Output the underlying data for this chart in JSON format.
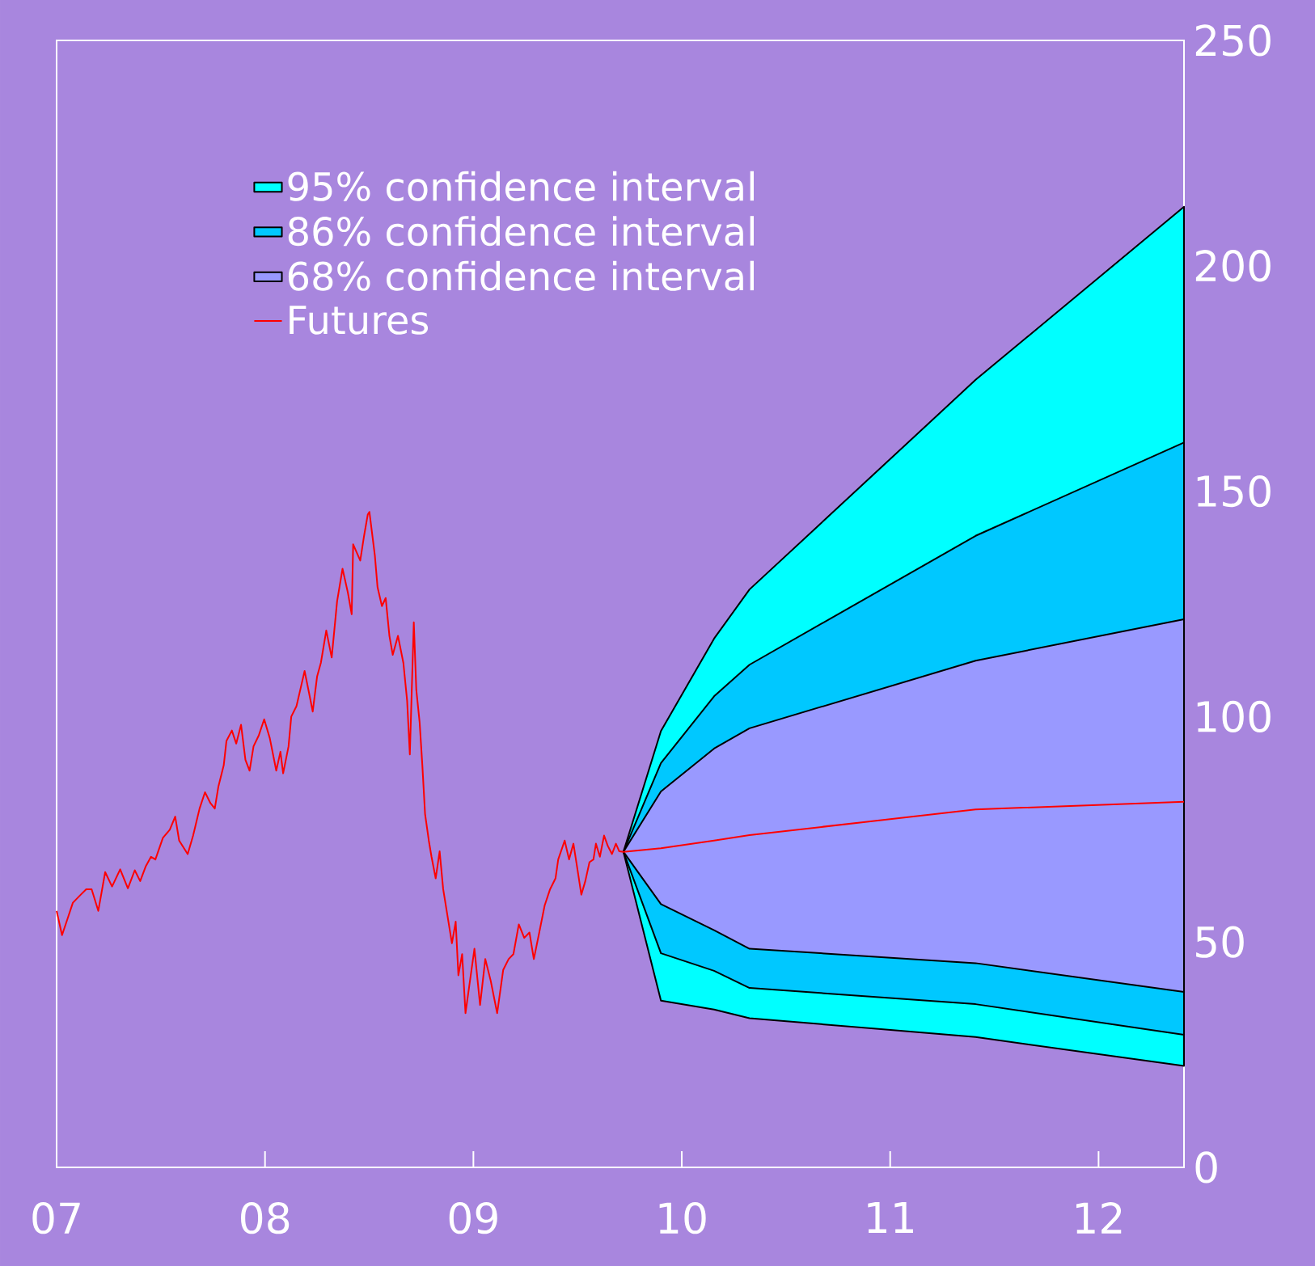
{
  "chart_data": {
    "type": "line",
    "xlim": [
      7,
      12.41
    ],
    "ylim": [
      0,
      250
    ],
    "xticks": [
      {
        "value": 7,
        "label": "07"
      },
      {
        "value": 8,
        "label": "08"
      },
      {
        "value": 9,
        "label": "09"
      },
      {
        "value": 10,
        "label": "10"
      },
      {
        "value": 11,
        "label": "11"
      },
      {
        "value": 12,
        "label": "12"
      }
    ],
    "yticks": [
      0,
      50,
      100,
      150,
      200,
      250
    ],
    "legend": "top left",
    "series": [
      {
        "name": "95% confidence interval",
        "color": "#00ffff",
        "x": [
          9.72,
          9.9,
          10.155,
          10.325,
          11.41,
          12.41
        ],
        "values": [
          null,
          null,
          null,
          null,
          null,
          null
        ],
        "upper": [
          70,
          96.8,
          117.3,
          128.2,
          174.7,
          213.1
        ],
        "lower": [
          70,
          37.0,
          35.0,
          33.1,
          28.9,
          22.5
        ]
      },
      {
        "name": "86% confidence interval",
        "color": "#00c8ff",
        "x": [
          9.72,
          9.9,
          10.155,
          10.325,
          11.41,
          12.41
        ],
        "values": [
          null,
          null,
          null,
          null,
          null,
          null
        ],
        "upper": [
          70,
          89.7,
          104.5,
          111.5,
          140.1,
          160.8
        ],
        "lower": [
          70,
          47.5,
          43.6,
          39.8,
          36.2,
          29.4
        ]
      },
      {
        "name": "68% confidence interval",
        "color": "#9999ff",
        "x": [
          9.72,
          9.9,
          10.155,
          10.325,
          11.41,
          12.41
        ],
        "values": [
          null,
          null,
          null,
          null,
          null,
          null
        ],
        "upper": [
          70,
          83.4,
          92.9,
          97.4,
          112.4,
          121.6
        ],
        "lower": [
          70,
          58.4,
          52.6,
          48.5,
          45.3,
          38.9
        ]
      },
      {
        "name": "Futures",
        "color": "#ff0000",
        "x": [
          7.0,
          7.026,
          7.052,
          7.078,
          7.116,
          7.142,
          7.168,
          7.2,
          7.233,
          7.266,
          7.305,
          7.342,
          7.375,
          7.401,
          7.427,
          7.453,
          7.474,
          7.51,
          7.543,
          7.569,
          7.588,
          7.629,
          7.655,
          7.686,
          7.712,
          7.738,
          7.759,
          7.776,
          7.802,
          7.815,
          7.841,
          7.862,
          7.885,
          7.906,
          7.926,
          7.945,
          7.97,
          7.996,
          8.023,
          8.054,
          8.074,
          8.087,
          8.113,
          8.126,
          8.151,
          8.172,
          8.19,
          8.211,
          8.229,
          8.25,
          8.268,
          8.294,
          8.32,
          8.346,
          8.372,
          8.398,
          8.416,
          8.423,
          8.457,
          8.475,
          8.493,
          8.501,
          8.527,
          8.54,
          8.561,
          8.579,
          8.597,
          8.613,
          8.638,
          8.664,
          8.682,
          8.695,
          8.714,
          8.726,
          8.742,
          8.755,
          8.768,
          8.786,
          8.799,
          8.819,
          8.838,
          8.855,
          8.876,
          8.897,
          8.915,
          8.928,
          8.946,
          8.962,
          8.98,
          9.005,
          9.032,
          9.057,
          9.083,
          9.114,
          9.143,
          9.169,
          9.192,
          9.218,
          9.244,
          9.269,
          9.29,
          9.316,
          9.342,
          9.368,
          9.394,
          9.407,
          9.438,
          9.459,
          9.48,
          9.498,
          9.518,
          9.537,
          9.557,
          9.576,
          9.588,
          9.607,
          9.627,
          9.645,
          9.665,
          9.684,
          9.7,
          9.72,
          9.9,
          10.155,
          10.325,
          11.41,
          12.41
        ],
        "values": [
          56.9,
          51.5,
          55.1,
          58.7,
          60.5,
          61.7,
          61.7,
          56.9,
          65.5,
          62.3,
          66.1,
          61.9,
          65.9,
          63.5,
          66.7,
          68.9,
          68.3,
          73.1,
          74.9,
          77.8,
          72.5,
          69.5,
          73.6,
          79.6,
          83.2,
          80.8,
          79.6,
          84.4,
          89.2,
          94.6,
          96.9,
          94.0,
          98.2,
          90.4,
          88.0,
          93.4,
          95.8,
          99.4,
          95.2,
          88.0,
          92.2,
          87.4,
          93.4,
          100.0,
          102.3,
          106.5,
          110.1,
          105.3,
          101.1,
          108.9,
          111.9,
          119.1,
          113.1,
          125.6,
          132.8,
          127.4,
          122.7,
          138.2,
          134.6,
          140.0,
          144.8,
          145.4,
          135.8,
          128.7,
          124.5,
          126.3,
          117.9,
          113.7,
          117.9,
          111.9,
          103.5,
          91.6,
          120.9,
          105.9,
          98.7,
          89.2,
          78.4,
          72.5,
          68.9,
          64.1,
          70.1,
          61.7,
          55.7,
          49.7,
          54.5,
          42.6,
          47.3,
          34.2,
          40.2,
          48.5,
          36.0,
          46.2,
          41.4,
          34.2,
          43.8,
          46.2,
          47.3,
          53.9,
          50.9,
          52.1,
          46.2,
          52.1,
          58.1,
          61.7,
          64.1,
          68.3,
          72.5,
          68.3,
          71.8,
          66.5,
          60.5,
          63.5,
          67.7,
          68.3,
          71.8,
          68.9,
          73.6,
          71.3,
          69.5,
          71.8,
          70.1,
          70,
          70.8,
          72.5,
          73.7,
          79.4,
          81.1
        ]
      }
    ]
  }
}
